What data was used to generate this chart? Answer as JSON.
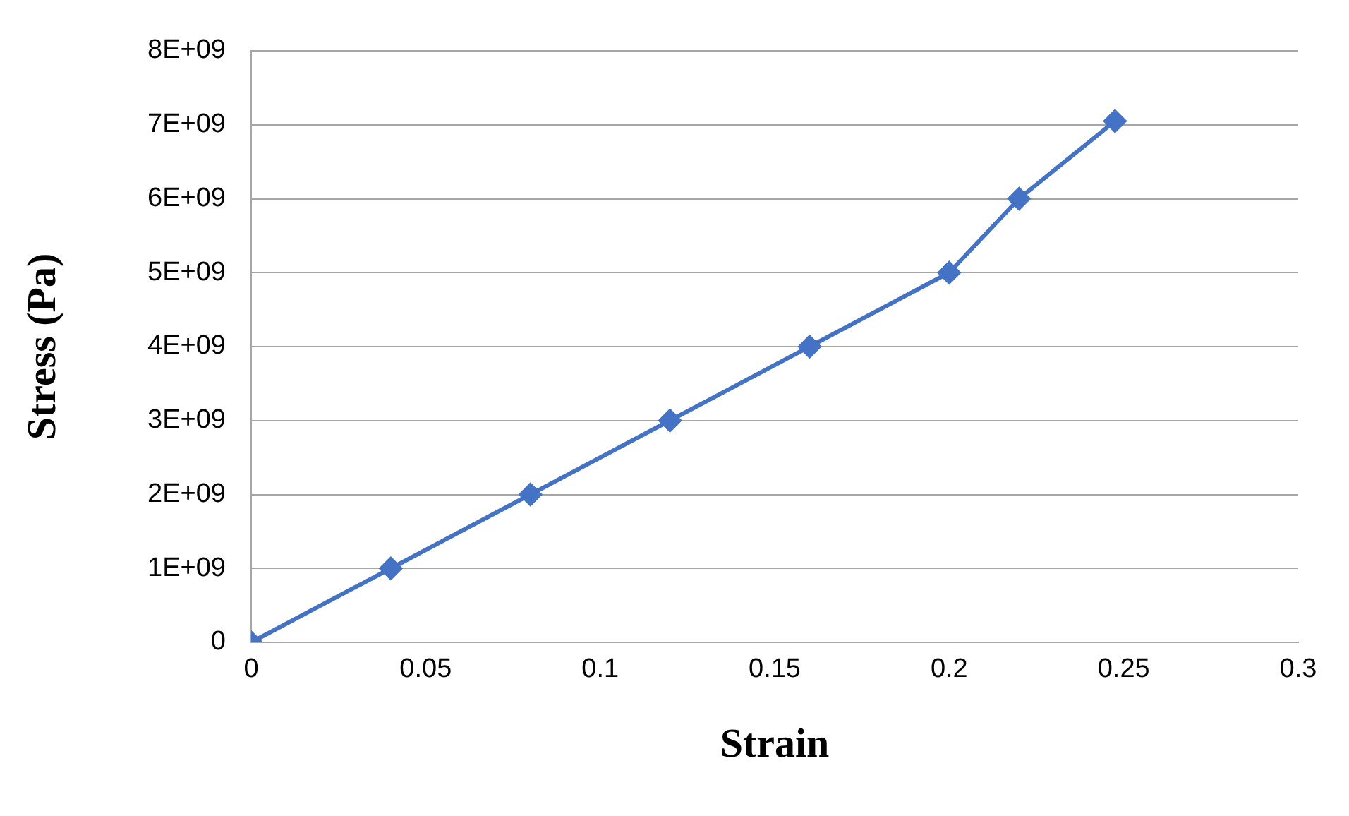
{
  "chart_data": {
    "type": "line",
    "xlabel": "Strain",
    "ylabel": "Stress (Pa)",
    "x": [
      0,
      0.04,
      0.08,
      0.12,
      0.16,
      0.2,
      0.22,
      0.2475
    ],
    "series": [
      {
        "color": "#4472c4",
        "values": [
          0,
          1000000000,
          2000000000,
          3000000000,
          4000000000,
          5000000000,
          6000000000,
          7050000000
        ]
      }
    ],
    "xlim": [
      0,
      0.3
    ],
    "xticks": [
      0,
      0.05,
      0.1,
      0.15,
      0.2,
      0.25,
      0.3
    ],
    "ylim": [
      0,
      8000000000
    ],
    "yticks": [
      0,
      {
        "value": 1000000000,
        "label": "1E+09"
      },
      {
        "value": 2000000000,
        "label": "2E+09"
      },
      {
        "value": 3000000000,
        "label": "3E+09"
      },
      {
        "value": 4000000000,
        "label": "4E+09"
      },
      {
        "value": 5000000000,
        "label": "5E+09"
      },
      {
        "value": 6000000000,
        "label": "6E+09"
      },
      {
        "value": 7000000000,
        "label": "7E+09"
      },
      {
        "value": 8000000000,
        "label": "8E+09"
      }
    ],
    "grid": "y",
    "legend": false,
    "marker": "diamond",
    "line_style": "solid"
  }
}
